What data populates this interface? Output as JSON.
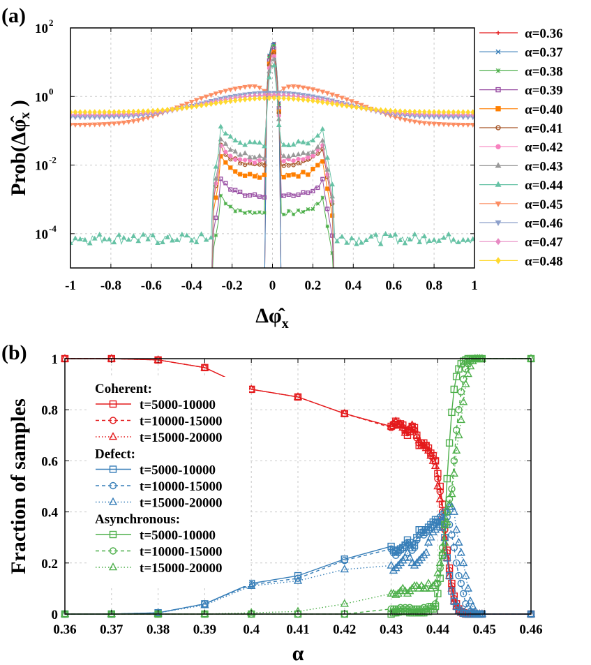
{
  "chart_data": [
    {
      "panel_label": "(a)",
      "type": "line",
      "xlabel": "Δφ̂x",
      "ylabel": "Prob(Δφ̂x )",
      "yscale": "log",
      "xlim": [
        -1,
        1
      ],
      "ylim": [
        1e-05,
        100
      ],
      "xticks": [
        "-1",
        "-0.8",
        "-0.6",
        "-0.4",
        "-0.2",
        "0",
        "0.2",
        "0.4",
        "0.6",
        "0.8",
        "1"
      ],
      "yticks": [
        {
          "base": "10",
          "exp": "2"
        },
        {
          "base": "10",
          "exp": "0"
        },
        {
          "base": "10",
          "exp": "-2"
        },
        {
          "base": "10",
          "exp": "-4"
        }
      ],
      "legend_position": "right-outside",
      "series": [
        {
          "name": "α=0.36",
          "color": "#e41a1c",
          "marker": "plus",
          "kind": "spike",
          "peak": 35,
          "shoulder": null
        },
        {
          "name": "α=0.37",
          "color": "#377eb8",
          "marker": "cross",
          "kind": "spike",
          "peak": 35,
          "shoulder": null
        },
        {
          "name": "α=0.38",
          "color": "#4daf4a",
          "marker": "star",
          "kind": "spike",
          "peak": 30,
          "shoulder": 0.0004
        },
        {
          "name": "α=0.39",
          "color": "#984ea3",
          "marker": "square",
          "kind": "spike",
          "peak": 25,
          "shoulder": 0.0013
        },
        {
          "name": "α=0.40",
          "color": "#ff7f00",
          "marker": "filled-square",
          "kind": "spike",
          "peak": 20,
          "shoulder": 0.005
        },
        {
          "name": "α=0.41",
          "color": "#a65628",
          "marker": "circle",
          "kind": "spike",
          "peak": 18,
          "shoulder": 0.011
        },
        {
          "name": "α=0.42",
          "color": "#f781bf",
          "marker": "filled-circle",
          "kind": "spike",
          "peak": 15,
          "shoulder": 0.013
        },
        {
          "name": "α=0.43",
          "color": "#999999",
          "marker": "filled-triangle",
          "kind": "spike",
          "peak": 12,
          "shoulder": 0.018
        },
        {
          "name": "α=0.44",
          "color": "#66c2a5",
          "marker": "filled-triangle",
          "kind": "wide",
          "peak": 8,
          "shoulder": 0.04
        },
        {
          "name": "α=0.45",
          "color": "#fc8d62",
          "marker": "filled-down-triangle",
          "kind": "broad",
          "peak": 2.2,
          "tail": 0.15
        },
        {
          "name": "α=0.46",
          "color": "#8da0cb",
          "marker": "filled-down-triangle",
          "kind": "broad",
          "peak": 1.3,
          "tail": 0.25
        },
        {
          "name": "α=0.47",
          "color": "#e78ac3",
          "marker": "filled-diamond",
          "kind": "broad",
          "peak": 1.1,
          "tail": 0.3
        },
        {
          "name": "α=0.48",
          "color": "#ffd92f",
          "marker": "filled-diamond",
          "kind": "broad",
          "peak": 0.9,
          "tail": 0.35
        }
      ]
    },
    {
      "panel_label": "(b)",
      "type": "line",
      "xlabel": "α",
      "ylabel": "Fraction of samples",
      "xlim": [
        0.36,
        0.46
      ],
      "ylim": [
        0,
        1
      ],
      "xticks": [
        "0.36",
        "0.37",
        "0.38",
        "0.39",
        "0.4",
        "0.41",
        "0.42",
        "0.43",
        "0.44",
        "0.45",
        "0.46"
      ],
      "yticks": [
        "0",
        "0.2",
        "0.4",
        "0.6",
        "0.8",
        "1"
      ],
      "legend_position": "left-inside",
      "x": [
        0.36,
        0.37,
        0.38,
        0.39,
        0.4,
        0.41,
        0.42,
        0.43,
        0.4305,
        0.431,
        0.4315,
        0.432,
        0.4325,
        0.433,
        0.4335,
        0.434,
        0.4345,
        0.435,
        0.4355,
        0.436,
        0.4365,
        0.437,
        0.4375,
        0.438,
        0.4385,
        0.439,
        0.4395,
        0.44,
        0.4405,
        0.441,
        0.4415,
        0.442,
        0.4425,
        0.443,
        0.4435,
        0.444,
        0.4445,
        0.445,
        0.4455,
        0.446,
        0.4465,
        0.447,
        0.4475,
        0.448,
        0.4485,
        0.449,
        0.4495,
        0.46
      ],
      "groups": [
        {
          "title": "Coherent:",
          "color": "#e41a1c",
          "series": [
            {
              "name": "t=5000-10000",
              "dash": "solid",
              "marker": "square",
              "values": [
                1,
                1,
                0.995,
                0.965,
                0.88,
                0.85,
                0.785,
                0.735,
                0.74,
                0.755,
                0.74,
                0.745,
                0.74,
                0.72,
                0.7,
                0.715,
                0.735,
                0.73,
                0.7,
                0.66,
                0.67,
                0.67,
                0.66,
                0.65,
                0.63,
                0.62,
                0.6,
                0.55,
                0.5,
                0.43,
                0.35,
                0.25,
                0.18,
                0.12,
                0.07,
                0.04,
                0.02,
                0.01,
                0.005,
                0,
                0,
                0,
                0,
                0,
                0,
                0,
                0,
                0
              ]
            },
            {
              "name": "t=10000-15000",
              "dash": "dashed",
              "marker": "circle",
              "values": [
                1,
                1,
                0.995,
                0.965,
                0.88,
                0.85,
                0.785,
                0.73,
                0.745,
                0.75,
                0.745,
                0.74,
                0.73,
                0.72,
                0.71,
                0.72,
                0.73,
                0.72,
                0.69,
                0.67,
                0.67,
                0.66,
                0.66,
                0.64,
                0.62,
                0.61,
                0.6,
                0.53,
                0.48,
                0.4,
                0.33,
                0.24,
                0.17,
                0.11,
                0.06,
                0.03,
                0.015,
                0.008,
                0.003,
                0,
                0,
                0,
                0,
                0,
                0,
                0,
                0,
                0
              ]
            },
            {
              "name": "t=15000-20000",
              "dash": "dotted",
              "marker": "triangle",
              "values": [
                1,
                1,
                0.995,
                0.965,
                0.88,
                0.85,
                0.785,
                0.735,
                0.745,
                0.755,
                0.74,
                0.745,
                0.73,
                0.71,
                0.72,
                0.73,
                0.74,
                0.725,
                0.7,
                0.68,
                0.66,
                0.66,
                0.65,
                0.64,
                0.62,
                0.6,
                0.58,
                0.5,
                0.45,
                0.38,
                0.3,
                0.22,
                0.15,
                0.1,
                0.05,
                0.03,
                0.012,
                0.005,
                0.002,
                0,
                0,
                0,
                0,
                0,
                0,
                0,
                0,
                0
              ]
            }
          ]
        },
        {
          "title": "Defect:",
          "color": "#377eb8",
          "series": [
            {
              "name": "t=5000-10000",
              "dash": "solid",
              "marker": "square",
              "values": [
                0,
                0,
                0.005,
                0.04,
                0.12,
                0.15,
                0.215,
                0.265,
                0.25,
                0.245,
                0.25,
                0.255,
                0.26,
                0.27,
                0.29,
                0.28,
                0.26,
                0.27,
                0.3,
                0.33,
                0.33,
                0.32,
                0.33,
                0.34,
                0.35,
                0.36,
                0.37,
                0.37,
                0.36,
                0.34,
                0.3,
                0.22,
                0.15,
                0.09,
                0.05,
                0.03,
                0.015,
                0.008,
                0.003,
                0.001,
                0,
                0,
                0,
                0,
                0,
                0,
                0,
                0
              ]
            },
            {
              "name": "t=10000-15000",
              "dash": "dashed",
              "marker": "circle",
              "values": [
                0,
                0,
                0.005,
                0.04,
                0.115,
                0.14,
                0.21,
                0.255,
                0.24,
                0.23,
                0.24,
                0.25,
                0.26,
                0.27,
                0.28,
                0.27,
                0.25,
                0.26,
                0.29,
                0.31,
                0.32,
                0.31,
                0.32,
                0.33,
                0.34,
                0.35,
                0.36,
                0.36,
                0.38,
                0.39,
                0.4,
                0.38,
                0.35,
                0.31,
                0.26,
                0.2,
                0.15,
                0.12,
                0.08,
                0.04,
                0.02,
                0.01,
                0.005,
                0.002,
                0,
                0,
                0,
                0
              ]
            },
            {
              "name": "t=15000-20000",
              "dash": "dotted",
              "marker": "triangle",
              "values": [
                0,
                0,
                0.005,
                0.035,
                0.11,
                0.13,
                0.175,
                0.19,
                0.17,
                0.18,
                0.19,
                0.2,
                0.21,
                0.22,
                0.24,
                0.22,
                0.2,
                0.19,
                0.2,
                0.21,
                0.22,
                0.23,
                0.24,
                0.28,
                0.3,
                0.32,
                0.33,
                0.34,
                0.35,
                0.36,
                0.38,
                0.4,
                0.42,
                0.42,
                0.4,
                0.33,
                0.28,
                0.24,
                0.2,
                0.15,
                0.1,
                0.05,
                0.03,
                0.01,
                0,
                0,
                0,
                0
              ]
            }
          ]
        },
        {
          "title": "Asynchronous:",
          "color": "#4daf4a",
          "series": [
            {
              "name": "t=5000-10000",
              "dash": "solid",
              "marker": "square",
              "values": [
                0,
                0,
                0,
                0,
                0,
                0,
                0,
                0,
                0.005,
                0.005,
                0.008,
                0.01,
                0.01,
                0.01,
                0.01,
                0.005,
                0.005,
                0.005,
                0.005,
                0.008,
                0.005,
                0.005,
                0.01,
                0.01,
                0.02,
                0.02,
                0.03,
                0.08,
                0.14,
                0.23,
                0.35,
                0.53,
                0.67,
                0.79,
                0.88,
                0.93,
                0.96,
                0.98,
                0.99,
                0.995,
                1,
                1,
                1,
                1,
                1,
                1,
                1,
                1
              ]
            },
            {
              "name": "t=10000-15000",
              "dash": "dashed",
              "marker": "circle",
              "values": [
                0,
                0,
                0,
                0,
                0,
                0,
                0,
                0.02,
                0.02,
                0.02,
                0.02,
                0.025,
                0.02,
                0.025,
                0.02,
                0.025,
                0.02,
                0.02,
                0.02,
                0.02,
                0.02,
                0.025,
                0.02,
                0.03,
                0.03,
                0.03,
                0.04,
                0.12,
                0.18,
                0.26,
                0.35,
                0.4,
                0.45,
                0.49,
                0.6,
                0.72,
                0.8,
                0.87,
                0.92,
                0.96,
                0.98,
                0.99,
                1,
                1,
                1,
                1,
                1,
                1
              ]
            },
            {
              "name": "t=15000-20000",
              "dash": "dotted",
              "marker": "triangle",
              "values": [
                0,
                0,
                0,
                0,
                0.005,
                0.01,
                0.04,
                0.08,
                0.08,
                0.075,
                0.08,
                0.09,
                0.1,
                0.09,
                0.08,
                0.09,
                0.1,
                0.11,
                0.11,
                0.1,
                0.11,
                0.1,
                0.1,
                0.12,
                0.1,
                0.11,
                0.12,
                0.16,
                0.2,
                0.24,
                0.28,
                0.36,
                0.43,
                0.47,
                0.55,
                0.64,
                0.7,
                0.76,
                0.83,
                0.9,
                0.94,
                0.97,
                0.99,
                1,
                1,
                1,
                1,
                1
              ]
            }
          ]
        }
      ]
    }
  ]
}
